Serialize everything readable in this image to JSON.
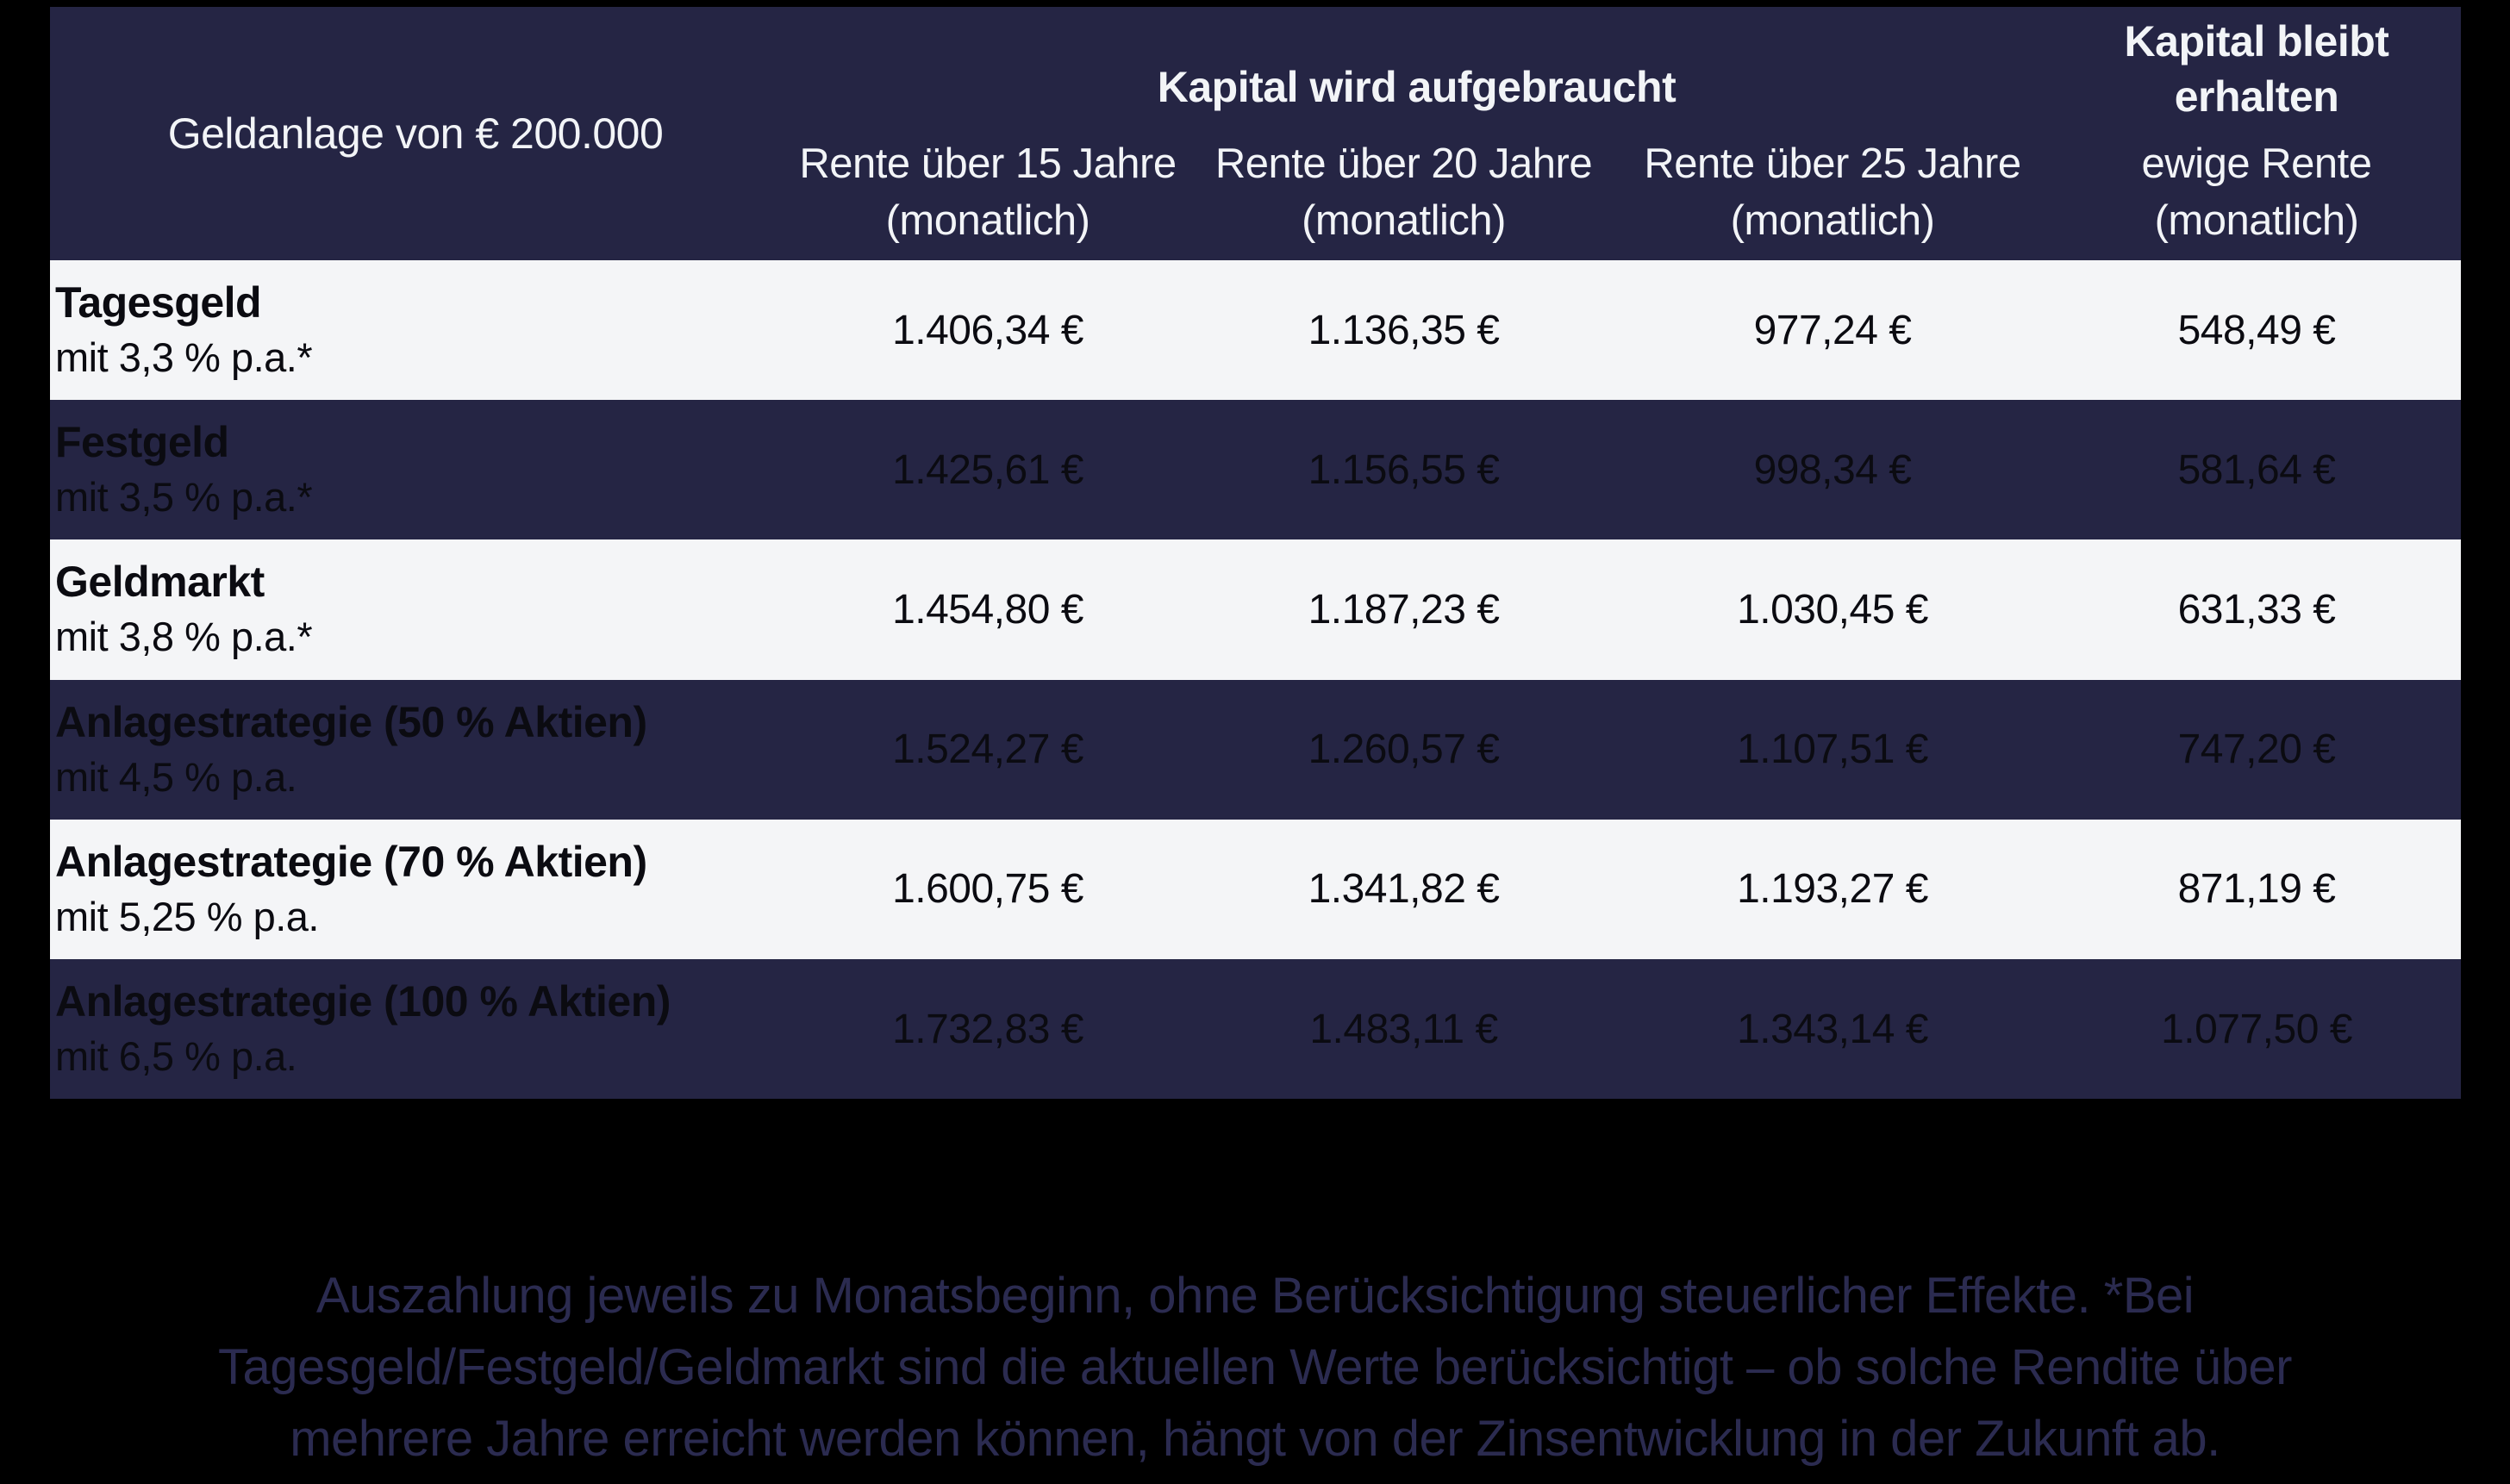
{
  "colors": {
    "page_background": "#000000",
    "dark_row_background": "#252544",
    "light_row_background": "#F4F5F7",
    "header_text": "#F2F4F7",
    "row_text": "#0B0B11",
    "footnote_text": "#2B2B50"
  },
  "table": {
    "corner_label": "Geldanlage von € 200.000",
    "group_headers": {
      "consume": "Kapital wird aufgebraucht",
      "preserve": "Kapital bleibt erhalten"
    },
    "column_headers": [
      "Rente über 15 Jahre (monatlich)",
      "Rente über 20 Jahre (monatlich)",
      "Rente über 25 Jahre (monatlich)",
      "ewige Rente (monatlich)"
    ],
    "rows": [
      {
        "name": "Tagesgeld",
        "rate": "mit 3,3 % p.a.*",
        "values": [
          "1.406,34 €",
          "1.136,35 €",
          "977,24 €",
          "548,49 €"
        ]
      },
      {
        "name": "Festgeld",
        "rate": "mit 3,5 % p.a.*",
        "values": [
          "1.425,61 €",
          "1.156,55 €",
          "998,34 €",
          "581,64 €"
        ]
      },
      {
        "name": "Geldmarkt",
        "rate": "mit 3,8 % p.a.*",
        "values": [
          "1.454,80 €",
          "1.187,23 €",
          "1.030,45 €",
          "631,33 €"
        ]
      },
      {
        "name": "Anlagestrategie (50 % Aktien)",
        "rate": "mit 4,5 % p.a.",
        "values": [
          "1.524,27 €",
          "1.260,57 €",
          "1.107,51 €",
          "747,20 €"
        ]
      },
      {
        "name": "Anlagestrategie (70 % Aktien)",
        "rate": "mit 5,25 % p.a.",
        "values": [
          "1.600,75 €",
          "1.341,82 €",
          "1.193,27 €",
          "871,19 €"
        ]
      },
      {
        "name": "Anlagestrategie (100 % Aktien)",
        "rate": "mit 6,5 % p.a.",
        "values": [
          "1.732,83 €",
          "1.483,11 €",
          "1.343,14 €",
          "1.077,50 €"
        ]
      }
    ]
  },
  "footer": {
    "lines": [
      "Auszahlung jeweils zu Monatsbeginn, ohne Berücksichtigung steuerlicher Effekte. *Bei",
      "Tagesgeld/Festgeld/Geldmarkt sind die aktuellen Werte berücksichtigt – ob solche Rendite über",
      "mehrere Jahre erreicht werden können, hängt von der Zinsentwicklung in der Zukunft ab."
    ]
  },
  "chart_data": {
    "type": "table",
    "title": "Geldanlage von € 200.000",
    "column_groups": [
      {
        "label": "Kapital wird aufgebraucht",
        "columns": [
          0,
          1,
          2
        ]
      },
      {
        "label": "Kapital bleibt erhalten",
        "columns": [
          3
        ]
      }
    ],
    "columns": [
      "Rente über 15 Jahre (monatlich)",
      "Rente über 20 Jahre (monatlich)",
      "Rente über 25 Jahre (monatlich)",
      "ewige Rente (monatlich)"
    ],
    "rows": [
      {
        "label": "Tagesgeld mit 3,3 % p.a.*",
        "rate_percent": 3.3,
        "values_eur": [
          1406.34,
          1136.35,
          977.24,
          548.49
        ]
      },
      {
        "label": "Festgeld mit 3,5 % p.a.*",
        "rate_percent": 3.5,
        "values_eur": [
          1425.61,
          1156.55,
          998.34,
          581.64
        ]
      },
      {
        "label": "Geldmarkt mit 3,8 % p.a.*",
        "rate_percent": 3.8,
        "values_eur": [
          1454.8,
          1187.23,
          1030.45,
          631.33
        ]
      },
      {
        "label": "Anlagestrategie (50 % Aktien) mit 4,5 % p.a.",
        "rate_percent": 4.5,
        "values_eur": [
          1524.27,
          1260.57,
          1107.51,
          747.2
        ]
      },
      {
        "label": "Anlagestrategie (70 % Aktien) mit 5,25 % p.a.",
        "rate_percent": 5.25,
        "values_eur": [
          1600.75,
          1341.82,
          1193.27,
          871.19
        ]
      },
      {
        "label": "Anlagestrategie (100 % Aktien) mit 6,5 % p.a.",
        "rate_percent": 6.5,
        "values_eur": [
          1732.83,
          1483.11,
          1343.14,
          1077.5
        ]
      }
    ],
    "notes": "Auszahlung jeweils zu Monatsbeginn, ohne Berücksichtigung steuerlicher Effekte. *Bei Tagesgeld/Festgeld/Geldmarkt sind die aktuellen Werte berücksichtigt – ob solche Rendite über mehrere Jahre erreicht werden können, hängt von der Zinsentwicklung in der Zukunft ab."
  }
}
